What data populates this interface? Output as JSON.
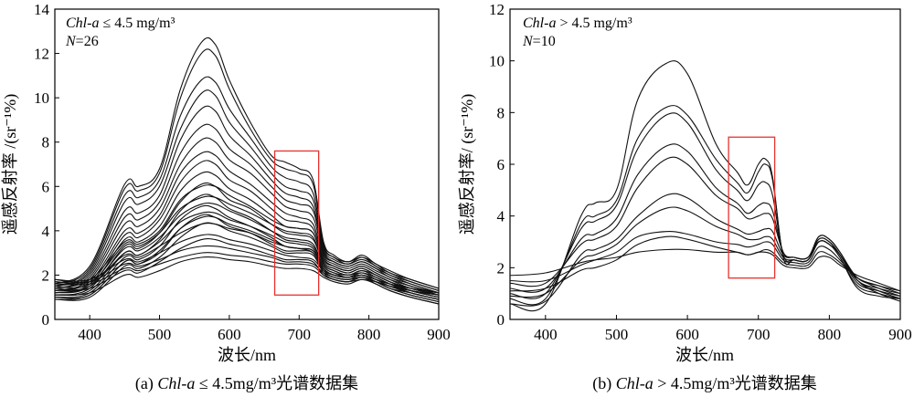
{
  "chart_data": [
    {
      "type": "line",
      "panel": "a",
      "caption_prefix": "(a) ",
      "caption_italic": "Chl-a",
      "caption_rest": " ≤ 4.5mg/m³光谱数据集",
      "annotation_italic": "Chl-a",
      "annotation_rest": " ≤ 4.5 mg/m³",
      "count_label": "N",
      "count_value": "=26",
      "xlabel": "波长/nm",
      "ylabel": "遥感反射率 /(sr⁻¹%)",
      "xlim": [
        350,
        900
      ],
      "ylim": [
        0,
        14
      ],
      "xticks": [
        400,
        500,
        600,
        700,
        800,
        900
      ],
      "yticks": [
        0,
        2,
        4,
        6,
        8,
        10,
        12,
        14
      ],
      "highlight_box": {
        "x": [
          665,
          728
        ],
        "y": [
          1.1,
          7.6
        ],
        "color": "#e8312f"
      },
      "x": [
        350,
        400,
        450,
        470,
        500,
        530,
        560,
        580,
        600,
        630,
        660,
        680,
        700,
        720,
        735,
        750,
        770,
        790,
        810,
        830,
        860,
        900
      ],
      "series": [
        {
          "values": [
            0.9,
            1.1,
            2.6,
            2.5,
            3.0,
            4.1,
            4.7,
            4.6,
            4.2,
            3.9,
            3.4,
            3.1,
            3.1,
            3.0,
            2.2,
            1.9,
            1.8,
            1.9,
            1.7,
            1.4,
            1.1,
            0.8
          ]
        },
        {
          "values": [
            1.0,
            1.2,
            2.8,
            2.7,
            3.3,
            4.5,
            5.1,
            5.0,
            4.6,
            4.2,
            3.7,
            3.3,
            3.2,
            3.1,
            2.3,
            2.0,
            1.9,
            2.0,
            1.8,
            1.5,
            1.2,
            0.9
          ]
        },
        {
          "values": [
            1.1,
            1.3,
            3.0,
            2.9,
            3.6,
            4.9,
            5.6,
            5.5,
            5.0,
            4.6,
            4.0,
            3.6,
            3.5,
            3.3,
            2.4,
            2.1,
            2.0,
            2.1,
            1.9,
            1.6,
            1.3,
            1.0
          ]
        },
        {
          "values": [
            1.1,
            1.4,
            3.3,
            3.2,
            3.9,
            5.3,
            6.1,
            6.0,
            5.4,
            5.0,
            4.3,
            3.9,
            3.8,
            3.6,
            2.5,
            2.2,
            2.0,
            2.2,
            2.0,
            1.7,
            1.3,
            1.0
          ]
        },
        {
          "values": [
            1.2,
            1.5,
            3.6,
            3.5,
            4.2,
            5.8,
            6.6,
            6.5,
            5.9,
            5.4,
            4.7,
            4.2,
            4.1,
            3.9,
            2.6,
            2.3,
            2.1,
            2.3,
            2.0,
            1.7,
            1.4,
            1.1
          ]
        },
        {
          "values": [
            1.2,
            1.6,
            3.8,
            3.7,
            4.5,
            6.2,
            7.1,
            7.0,
            6.3,
            5.8,
            5.0,
            4.5,
            4.4,
            4.1,
            2.7,
            2.4,
            2.2,
            2.4,
            2.1,
            1.8,
            1.4,
            1.1
          ]
        },
        {
          "values": [
            1.3,
            1.7,
            4.0,
            3.9,
            4.7,
            6.6,
            7.5,
            7.4,
            6.7,
            6.1,
            5.3,
            4.8,
            4.6,
            4.3,
            2.8,
            2.4,
            2.2,
            2.4,
            2.1,
            1.8,
            1.5,
            1.1
          ]
        },
        {
          "values": [
            1.3,
            1.8,
            4.3,
            4.2,
            5.0,
            7.0,
            8.1,
            8.0,
            7.2,
            6.6,
            5.7,
            5.1,
            4.9,
            4.6,
            2.9,
            2.5,
            2.3,
            2.5,
            2.2,
            1.9,
            1.5,
            1.2
          ]
        },
        {
          "values": [
            1.4,
            1.9,
            4.6,
            4.5,
            5.3,
            7.5,
            8.7,
            8.6,
            7.7,
            7.0,
            6.0,
            5.4,
            5.2,
            4.9,
            3.0,
            2.6,
            2.4,
            2.6,
            2.3,
            1.9,
            1.6,
            1.2
          ]
        },
        {
          "values": [
            1.4,
            2.0,
            4.9,
            4.8,
            5.6,
            8.1,
            9.5,
            9.4,
            8.3,
            7.4,
            6.3,
            5.7,
            5.5,
            5.1,
            3.1,
            2.6,
            2.4,
            2.6,
            2.3,
            2.0,
            1.6,
            1.2
          ]
        },
        {
          "values": [
            1.5,
            2.1,
            5.3,
            5.2,
            6.0,
            8.6,
            10.2,
            10.1,
            8.9,
            7.8,
            6.6,
            6.0,
            5.8,
            5.4,
            3.2,
            2.7,
            2.5,
            2.7,
            2.4,
            2.0,
            1.7,
            1.3
          ]
        },
        {
          "values": [
            1.5,
            2.2,
            5.6,
            5.5,
            6.3,
            9.2,
            10.8,
            10.7,
            9.5,
            8.2,
            6.9,
            6.4,
            6.2,
            5.7,
            3.3,
            2.8,
            2.5,
            2.8,
            2.4,
            2.1,
            1.7,
            1.3
          ]
        },
        {
          "values": [
            1.6,
            2.3,
            5.9,
            5.8,
            6.6,
            10.0,
            12.0,
            11.9,
            10.4,
            8.6,
            7.2,
            6.8,
            6.6,
            6.1,
            3.4,
            2.8,
            2.6,
            2.8,
            2.5,
            2.1,
            1.8,
            1.4
          ]
        },
        {
          "values": [
            1.6,
            2.4,
            6.1,
            6.0,
            6.8,
            10.4,
            12.5,
            12.4,
            10.8,
            8.9,
            7.4,
            7.1,
            6.8,
            6.3,
            3.5,
            2.9,
            2.6,
            2.9,
            2.5,
            2.2,
            1.8,
            1.4
          ]
        },
        {
          "values": [
            1.7,
            1.6,
            2.3,
            2.2,
            2.5,
            2.8,
            3.0,
            3.0,
            2.9,
            2.8,
            2.6,
            2.5,
            2.5,
            2.4,
            2.0,
            1.8,
            1.7,
            1.8,
            1.7,
            1.5,
            1.3,
            1.1
          ]
        },
        {
          "values": [
            1.8,
            1.7,
            2.5,
            2.4,
            2.7,
            3.1,
            3.3,
            3.3,
            3.2,
            3.0,
            2.8,
            2.6,
            2.6,
            2.5,
            2.1,
            1.9,
            1.8,
            1.9,
            1.7,
            1.5,
            1.3,
            1.1
          ]
        },
        {
          "values": [
            1.8,
            1.8,
            2.7,
            2.6,
            3.0,
            3.5,
            3.8,
            3.8,
            3.6,
            3.4,
            3.1,
            2.9,
            2.8,
            2.7,
            2.2,
            2.0,
            1.9,
            2.0,
            1.8,
            1.6,
            1.4,
            1.2
          ]
        },
        {
          "values": [
            1.2,
            1.4,
            2.2,
            2.1,
            2.6,
            3.2,
            3.6,
            3.6,
            3.4,
            3.2,
            2.9,
            2.7,
            2.7,
            2.6,
            2.0,
            1.8,
            1.7,
            1.9,
            1.7,
            1.4,
            1.2,
            0.9
          ]
        },
        {
          "values": [
            0.9,
            1.0,
            2.4,
            2.3,
            2.8,
            3.7,
            4.3,
            4.3,
            4.0,
            3.7,
            3.3,
            3.0,
            3.0,
            2.9,
            2.1,
            1.8,
            1.7,
            1.9,
            1.6,
            1.3,
            1.0,
            0.7
          ]
        },
        {
          "values": [
            1.0,
            1.1,
            2.6,
            2.5,
            3.1,
            4.1,
            4.6,
            4.6,
            4.3,
            4.0,
            3.6,
            3.3,
            3.2,
            3.0,
            2.2,
            1.9,
            1.8,
            2.0,
            1.7,
            1.4,
            1.1,
            0.8
          ]
        },
        {
          "values": [
            1.3,
            1.5,
            3.0,
            2.9,
            3.5,
            4.4,
            4.8,
            4.8,
            4.5,
            4.2,
            3.8,
            3.5,
            3.4,
            3.2,
            2.3,
            2.0,
            1.9,
            2.1,
            1.8,
            1.5,
            1.2,
            0.9
          ]
        },
        {
          "values": [
            1.4,
            1.5,
            3.2,
            3.1,
            3.7,
            4.7,
            5.2,
            5.2,
            4.9,
            4.5,
            4.0,
            3.7,
            3.6,
            3.4,
            2.4,
            2.1,
            1.9,
            2.1,
            1.9,
            1.6,
            1.2,
            0.9
          ]
        },
        {
          "values": [
            1.5,
            1.6,
            3.4,
            3.3,
            3.9,
            5.0,
            5.5,
            5.5,
            5.2,
            4.8,
            4.3,
            4.0,
            3.9,
            3.7,
            2.5,
            2.2,
            2.0,
            2.2,
            1.9,
            1.6,
            1.3,
            1.0
          ]
        },
        {
          "values": [
            1.6,
            1.7,
            2.9,
            2.8,
            3.3,
            3.9,
            4.3,
            4.3,
            4.1,
            3.9,
            3.5,
            3.3,
            3.2,
            3.1,
            2.3,
            2.0,
            1.9,
            2.0,
            1.8,
            1.6,
            1.4,
            1.2
          ]
        },
        {
          "values": [
            1.7,
            1.8,
            3.5,
            3.4,
            4.0,
            5.4,
            6.0,
            6.0,
            5.6,
            5.1,
            4.5,
            4.2,
            4.1,
            3.9,
            2.6,
            2.3,
            2.1,
            2.3,
            2.0,
            1.7,
            1.4,
            1.1
          ]
        },
        {
          "values": [
            1.1,
            1.2,
            2.0,
            1.9,
            2.2,
            2.6,
            2.8,
            2.8,
            2.7,
            2.6,
            2.4,
            2.3,
            2.3,
            2.2,
            1.9,
            1.7,
            1.6,
            1.8,
            1.6,
            1.3,
            1.0,
            0.7
          ]
        }
      ]
    },
    {
      "type": "line",
      "panel": "b",
      "caption_prefix": "(b) ",
      "caption_italic": "Chl-a",
      "caption_rest": " > 4.5mg/m³光谱数据集",
      "annotation_italic": "Chl-a",
      "annotation_rest": " > 4.5 mg/m³",
      "count_label": "N",
      "count_value": "=10",
      "xlabel": "波长/nm",
      "ylabel": "遥感反射率/ (sr⁻¹%)",
      "xlim": [
        350,
        900
      ],
      "ylim": [
        0,
        12
      ],
      "xticks": [
        400,
        500,
        600,
        700,
        800,
        900
      ],
      "yticks": [
        0,
        2,
        4,
        6,
        8,
        10,
        12
      ],
      "highlight_box": {
        "x": [
          658,
          723
        ],
        "y": [
          1.6,
          7.05
        ],
        "color": "#e8312f"
      },
      "x": [
        350,
        400,
        450,
        470,
        500,
        530,
        570,
        600,
        640,
        670,
        685,
        700,
        710,
        720,
        735,
        750,
        770,
        785,
        800,
        815,
        840,
        870,
        900
      ],
      "series": [
        {
          "values": [
            0.6,
            0.6,
            4.0,
            4.5,
            5.0,
            8.5,
            9.9,
            9.5,
            6.8,
            5.7,
            5.2,
            6.0,
            6.2,
            5.5,
            2.4,
            2.3,
            2.3,
            3.0,
            2.9,
            2.4,
            1.2,
            0.9,
            0.8
          ]
        },
        {
          "values": [
            0.8,
            0.8,
            3.7,
            4.0,
            4.6,
            7.0,
            8.2,
            7.9,
            6.2,
            5.3,
            4.9,
            5.7,
            6.0,
            5.4,
            2.4,
            2.3,
            2.3,
            3.0,
            2.9,
            2.4,
            1.3,
            1.0,
            0.8
          ]
        },
        {
          "values": [
            1.0,
            1.0,
            3.5,
            3.8,
            4.4,
            6.6,
            7.9,
            7.6,
            5.8,
            5.0,
            4.6,
            5.2,
            5.3,
            4.8,
            2.5,
            2.3,
            2.3,
            3.1,
            3.0,
            2.5,
            1.4,
            1.1,
            0.9
          ]
        },
        {
          "values": [
            1.2,
            1.2,
            3.1,
            3.3,
            3.9,
            5.6,
            6.7,
            6.5,
            5.1,
            4.5,
            4.1,
            4.4,
            4.5,
            4.2,
            2.6,
            2.4,
            2.4,
            3.1,
            3.0,
            2.5,
            1.5,
            1.2,
            1.0
          ]
        },
        {
          "values": [
            1.4,
            1.4,
            2.9,
            3.1,
            3.6,
            5.1,
            6.2,
            6.0,
            4.8,
            4.3,
            3.9,
            4.0,
            4.1,
            3.9,
            2.6,
            2.4,
            2.4,
            3.2,
            3.1,
            2.6,
            1.6,
            1.3,
            1.1
          ]
        },
        {
          "values": [
            0.6,
            0.7,
            2.5,
            2.7,
            3.1,
            4.0,
            4.8,
            4.7,
            3.9,
            3.5,
            3.3,
            3.4,
            3.5,
            3.4,
            2.5,
            2.4,
            2.4,
            3.2,
            3.1,
            2.6,
            1.5,
            1.0,
            0.7
          ]
        },
        {
          "values": [
            0.9,
            1.0,
            2.3,
            2.5,
            2.9,
            3.7,
            4.3,
            4.2,
            3.6,
            3.3,
            3.1,
            3.1,
            3.2,
            3.1,
            2.4,
            2.3,
            2.3,
            3.0,
            2.9,
            2.5,
            1.5,
            1.1,
            0.8
          ]
        },
        {
          "values": [
            1.5,
            1.5,
            2.1,
            2.3,
            2.6,
            3.2,
            3.4,
            3.3,
            3.0,
            2.9,
            2.8,
            2.9,
            3.0,
            2.9,
            2.3,
            2.2,
            2.2,
            2.8,
            2.7,
            2.3,
            1.6,
            1.3,
            1.0
          ]
        },
        {
          "values": [
            1.7,
            1.8,
            2.2,
            2.3,
            2.4,
            2.6,
            2.7,
            2.7,
            2.6,
            2.6,
            2.5,
            2.6,
            2.6,
            2.5,
            2.1,
            2.0,
            2.0,
            2.4,
            2.4,
            2.1,
            1.7,
            1.4,
            1.1
          ]
        },
        {
          "values": [
            1.1,
            1.2,
            1.9,
            2.0,
            2.3,
            2.9,
            3.2,
            3.1,
            2.8,
            2.6,
            2.5,
            2.6,
            2.7,
            2.6,
            2.2,
            2.1,
            2.1,
            2.6,
            2.5,
            2.2,
            1.6,
            1.2,
            0.9
          ]
        }
      ]
    }
  ]
}
